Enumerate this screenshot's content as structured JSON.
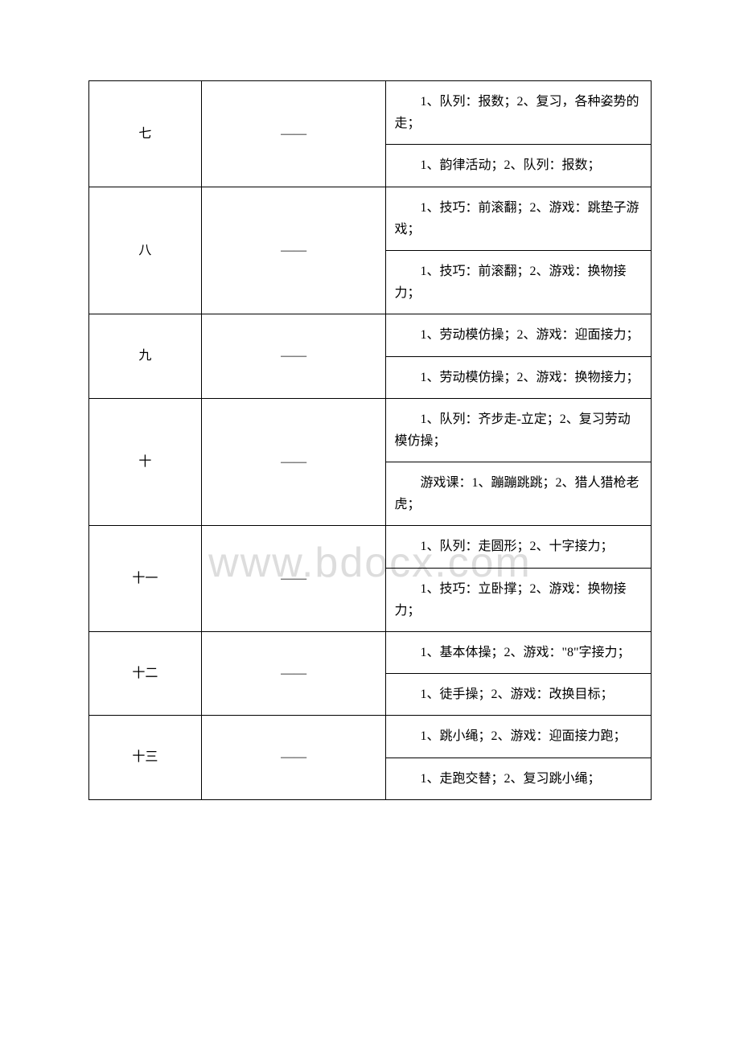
{
  "watermark": "www.bdocx.com",
  "rows": [
    {
      "num": "七",
      "dash": "——",
      "cells": [
        "1、队列：报数；2、复习，各种姿势的走；",
        "1、韵律活动；2、队列：报数；"
      ]
    },
    {
      "num": "八",
      "dash": "——",
      "cells": [
        "1、技巧：前滚翻；2、游戏：跳垫子游戏；",
        "1、技巧：前滚翻；2、游戏：换物接力；"
      ]
    },
    {
      "num": "九",
      "dash": "——",
      "cells": [
        "1、劳动模仿操；2、游戏：迎面接力；",
        "1、劳动模仿操；2、游戏：换物接力；"
      ]
    },
    {
      "num": "十",
      "dash": "——",
      "cells": [
        "1、队列：齐步走-立定；2、复习劳动模仿操；",
        "游戏课：1、蹦蹦跳跳；2、猎人猎枪老虎；"
      ]
    },
    {
      "num": "十一",
      "dash": "——",
      "cells": [
        "1、队列：走圆形；2、十字接力；",
        "1、技巧：立卧撑；2、游戏：换物接力；"
      ]
    },
    {
      "num": "十二",
      "dash": "——",
      "cells": [
        "1、基本体操；2、游戏：\"8\"字接力；",
        "1、徒手操；2、游戏：改换目标；"
      ]
    },
    {
      "num": "十三",
      "dash": "——",
      "cells": [
        "1、跳小绳；2、游戏：迎面接力跑；",
        "1、走跑交替；2、复习跳小绳；"
      ]
    }
  ]
}
